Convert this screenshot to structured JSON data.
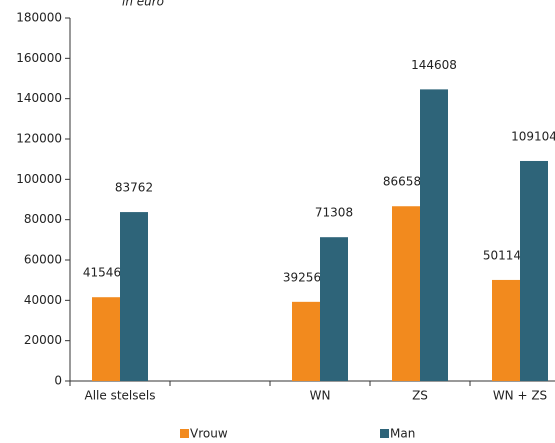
{
  "chart_data": {
    "type": "bar",
    "subtitle": "in euro",
    "categories": [
      "Alle stelsels",
      null,
      "WN",
      "ZS",
      "WN + ZS"
    ],
    "series": [
      {
        "name": "Vrouw",
        "color": "#f28a1e",
        "values": [
          41546,
          null,
          39256,
          86658,
          50114
        ]
      },
      {
        "name": "Man",
        "color": "#2e6479",
        "values": [
          83762,
          null,
          71308,
          144608,
          109104
        ]
      }
    ],
    "ylim": [
      0,
      180000
    ],
    "yticks": [
      0,
      20000,
      40000,
      60000,
      80000,
      100000,
      120000,
      140000,
      160000,
      180000
    ],
    "grid": false,
    "legend": "bottom"
  }
}
